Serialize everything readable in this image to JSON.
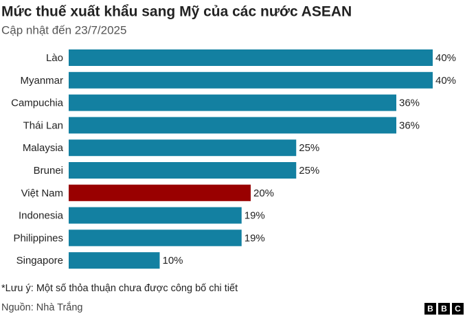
{
  "chart_data": {
    "type": "hbar",
    "title": "Mức thuế xuất khẩu sang Mỹ của các nước ASEAN",
    "subtitle": "Cập nhật đến 23/7/2025",
    "categories": [
      "Lào",
      "Myanmar",
      "Campuchia",
      "Thái Lan",
      "Malaysia",
      "Brunei",
      "Việt Nam",
      "Indonesia",
      "Philippines",
      "Singapore"
    ],
    "values": [
      40,
      40,
      36,
      36,
      25,
      25,
      20,
      19,
      19,
      10
    ],
    "value_labels": [
      "40%",
      "40%",
      "36%",
      "36%",
      "25%",
      "25%",
      "20%",
      "19%",
      "19%",
      "10%"
    ],
    "colors": [
      "#1380a1",
      "#1380a1",
      "#1380a1",
      "#1380a1",
      "#1380a1",
      "#1380a1",
      "#990000",
      "#1380a1",
      "#1380a1",
      "#1380a1"
    ],
    "note": "*Lưu ý: Một số thỏa thuận chưa được công bố chi tiết",
    "source": "Nguồn: Nhà Trắng",
    "logo": [
      "B",
      "B",
      "C"
    ]
  }
}
